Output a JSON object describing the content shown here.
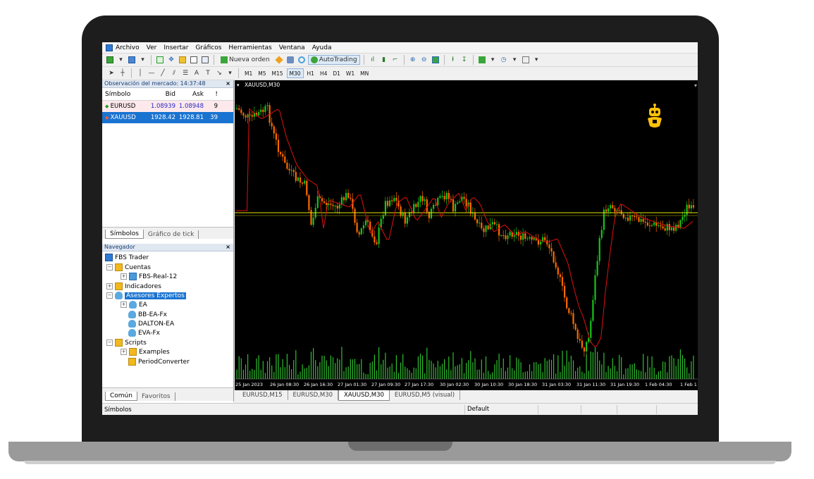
{
  "menubar": {
    "items": [
      "Archivo",
      "Ver",
      "Insertar",
      "Gráficos",
      "Herramientas",
      "Ventana",
      "Ayuda"
    ]
  },
  "toolbar": {
    "new_order": "Nueva orden",
    "autotrading": "AutoTrading",
    "timeframes": [
      "M1",
      "M5",
      "M15",
      "M30",
      "H1",
      "H4",
      "D1",
      "W1",
      "MN"
    ],
    "active_timeframe": "M30"
  },
  "market_watch": {
    "title": "Observación del mercado: 14:37:48",
    "columns": [
      "Símbolo",
      "Bid",
      "Ask",
      "!"
    ],
    "rows": [
      {
        "symbol": "EURUSD",
        "bid": "1.08939",
        "ask": "1.08948",
        "spread": "9"
      },
      {
        "symbol": "XAUUSD",
        "bid": "1928.42",
        "ask": "1928.81",
        "spread": "39"
      }
    ],
    "tabs": [
      "Símbolos",
      "Gráfico de tick"
    ]
  },
  "navigator": {
    "title": "Navegador",
    "root": "FBS Trader",
    "accounts": "Cuentas",
    "account": "FBS-Real-12",
    "indicators": "Indicadores",
    "experts": "Asesores Expertos",
    "expert_items": [
      "EA",
      "BB-EA-Fx",
      "DALTON-EA",
      "EVA-Fx"
    ],
    "scripts": "Scripts",
    "script_items": [
      "Examples",
      "PeriodConverter"
    ],
    "tabs": [
      "Común",
      "Favoritos"
    ]
  },
  "chart": {
    "title": "XAUUSD,M30",
    "time_labels": [
      "25 Jan 2023",
      "26 Jan 08:30",
      "26 Jan 16:30",
      "27 Jan 01:30",
      "27 Jan 09:30",
      "27 Jan 17:30",
      "30 Jan 02:30",
      "30 Jan 10:30",
      "30 Jan 18:30",
      "31 Jan 03:30",
      "31 Jan 11:30",
      "31 Jan 19:30",
      "1 Feb 04:30",
      "1 Feb 1"
    ],
    "colors": {
      "bull": "#19c219",
      "bear": "#ff6a00",
      "ma": "#e01010",
      "level": "#e6e600",
      "volume": "#2fbf2f",
      "background": "#000000"
    }
  },
  "chart_tabs": [
    "EURUSD,M15",
    "EURUSD,M30",
    "XAUUSD,M30",
    "EURUSD,M5 (visual)"
  ],
  "active_chart_tab": "XAUUSD,M30",
  "status": {
    "left": "Símbolos",
    "profile": "Default"
  }
}
